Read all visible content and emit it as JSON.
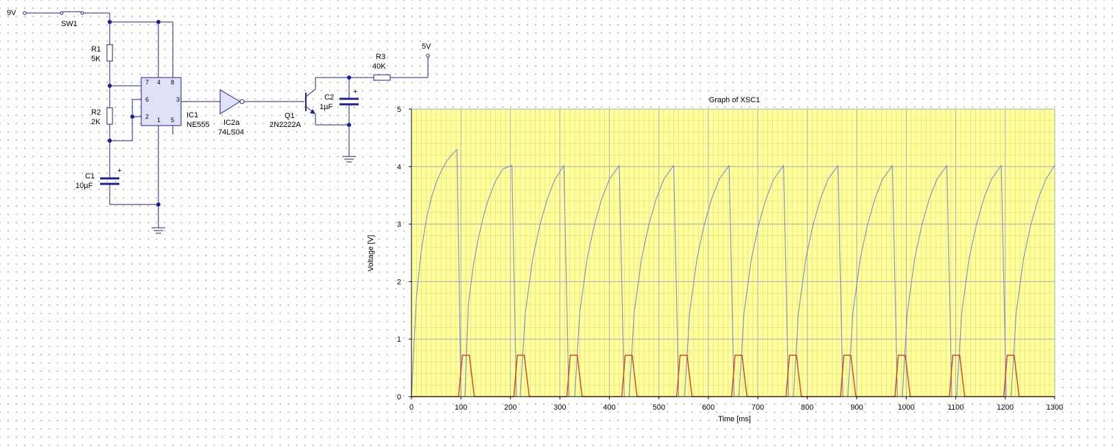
{
  "schematic": {
    "supply_9v": "9V",
    "supply_5v": "5V",
    "sw1": "SW1",
    "r1": {
      "ref": "R1",
      "value": "5K"
    },
    "r2": {
      "ref": "R2",
      "value": "2K"
    },
    "c1": {
      "ref": "C1",
      "value": "10µF",
      "polarity": "+"
    },
    "ic1": {
      "ref": "IC1",
      "value": "NE555",
      "pins": [
        "7",
        "4",
        "8",
        "6",
        "3",
        "2",
        "1",
        "5"
      ]
    },
    "ic2": {
      "ref": "IC2a",
      "value": "74LS04"
    },
    "q1": {
      "ref": "Q1",
      "value": "2N2222A"
    },
    "c2": {
      "ref": "C2",
      "value": "1µF",
      "polarity": "+"
    },
    "r3": {
      "ref": "R3",
      "value": "40K"
    }
  },
  "chart_data": {
    "type": "line",
    "title": "Graph of XSC1",
    "xlabel": "Time [ms]",
    "ylabel": "Voltage [V]",
    "xlim": [
      0,
      1300
    ],
    "ylim": [
      0,
      5
    ],
    "x_ticks": [
      "0",
      "100",
      "200",
      "300",
      "400",
      "500",
      "600",
      "700",
      "800",
      "900",
      "1000",
      "1100",
      "1200",
      "1300"
    ],
    "y_ticks": [
      "0",
      "1",
      "2",
      "3",
      "4",
      "5"
    ],
    "grid": true,
    "background_color": "#ffff9e",
    "series": [
      {
        "color": "#7b86d6",
        "points": [
          [
            0,
            0
          ],
          [
            10,
            1.72
          ],
          [
            20,
            2.55
          ],
          [
            30,
            3.08
          ],
          [
            40,
            3.45
          ],
          [
            50,
            3.72
          ],
          [
            60,
            3.92
          ],
          [
            70,
            4.08
          ],
          [
            80,
            4.19
          ],
          [
            92,
            4.3
          ],
          [
            100,
            0
          ],
          [
            108,
            0
          ],
          [
            115,
            1.6
          ],
          [
            125,
            2.28
          ],
          [
            135,
            2.75
          ],
          [
            145,
            3.12
          ],
          [
            155,
            3.42
          ],
          [
            170,
            3.75
          ],
          [
            185,
            3.96
          ],
          [
            203,
            4.02
          ],
          [
            212,
            0
          ],
          [
            220,
            0
          ],
          [
            230,
            1.45
          ],
          [
            245,
            2.4
          ],
          [
            260,
            3.0
          ],
          [
            275,
            3.45
          ],
          [
            290,
            3.78
          ],
          [
            308,
            4.02
          ],
          [
            318,
            0
          ],
          [
            330,
            0
          ],
          [
            340,
            1.45
          ],
          [
            355,
            2.4
          ],
          [
            370,
            3.0
          ],
          [
            385,
            3.45
          ],
          [
            400,
            3.78
          ],
          [
            420,
            4.02
          ],
          [
            430,
            0
          ],
          [
            440,
            0
          ],
          [
            450,
            1.45
          ],
          [
            465,
            2.4
          ],
          [
            480,
            3.0
          ],
          [
            495,
            3.45
          ],
          [
            510,
            3.78
          ],
          [
            530,
            4.02
          ],
          [
            540,
            0
          ],
          [
            552,
            0
          ],
          [
            562,
            1.45
          ],
          [
            577,
            2.4
          ],
          [
            592,
            3.0
          ],
          [
            607,
            3.45
          ],
          [
            622,
            3.78
          ],
          [
            642,
            4.02
          ],
          [
            652,
            0
          ],
          [
            662,
            0
          ],
          [
            672,
            1.45
          ],
          [
            687,
            2.4
          ],
          [
            702,
            3.0
          ],
          [
            717,
            3.45
          ],
          [
            732,
            3.78
          ],
          [
            752,
            4.02
          ],
          [
            762,
            0
          ],
          [
            772,
            0
          ],
          [
            782,
            1.45
          ],
          [
            797,
            2.4
          ],
          [
            812,
            3.0
          ],
          [
            827,
            3.45
          ],
          [
            842,
            3.78
          ],
          [
            862,
            4.02
          ],
          [
            872,
            0
          ],
          [
            882,
            0
          ],
          [
            892,
            1.45
          ],
          [
            907,
            2.4
          ],
          [
            922,
            3.0
          ],
          [
            937,
            3.45
          ],
          [
            952,
            3.78
          ],
          [
            972,
            4.02
          ],
          [
            982,
            0
          ],
          [
            992,
            0
          ],
          [
            1002,
            1.45
          ],
          [
            1017,
            2.4
          ],
          [
            1032,
            3.0
          ],
          [
            1047,
            3.45
          ],
          [
            1062,
            3.78
          ],
          [
            1082,
            4.02
          ],
          [
            1092,
            0
          ],
          [
            1102,
            0
          ],
          [
            1112,
            1.45
          ],
          [
            1127,
            2.4
          ],
          [
            1142,
            3.0
          ],
          [
            1157,
            3.45
          ],
          [
            1172,
            3.78
          ],
          [
            1192,
            4.02
          ],
          [
            1202,
            0
          ],
          [
            1212,
            0
          ],
          [
            1222,
            1.45
          ],
          [
            1237,
            2.4
          ],
          [
            1252,
            3.0
          ],
          [
            1267,
            3.45
          ],
          [
            1282,
            3.78
          ],
          [
            1300,
            4.02
          ]
        ]
      },
      {
        "color": "#e0362b",
        "points": [
          [
            0,
            0
          ],
          [
            95,
            0
          ],
          [
            103,
            0.72
          ],
          [
            117,
            0.72
          ],
          [
            127,
            0
          ],
          [
            207,
            0
          ],
          [
            214,
            0.72
          ],
          [
            228,
            0.72
          ],
          [
            238,
            0
          ],
          [
            314,
            0
          ],
          [
            321,
            0.72
          ],
          [
            335,
            0.72
          ],
          [
            345,
            0
          ],
          [
            425,
            0
          ],
          [
            432,
            0.72
          ],
          [
            446,
            0.72
          ],
          [
            456,
            0
          ],
          [
            536,
            0
          ],
          [
            543,
            0.72
          ],
          [
            557,
            0.72
          ],
          [
            567,
            0
          ],
          [
            647,
            0
          ],
          [
            654,
            0.72
          ],
          [
            668,
            0.72
          ],
          [
            678,
            0
          ],
          [
            757,
            0
          ],
          [
            764,
            0.72
          ],
          [
            778,
            0.72
          ],
          [
            788,
            0
          ],
          [
            867,
            0
          ],
          [
            874,
            0.72
          ],
          [
            888,
            0.72
          ],
          [
            898,
            0
          ],
          [
            977,
            0
          ],
          [
            984,
            0.72
          ],
          [
            998,
            0.72
          ],
          [
            1008,
            0
          ],
          [
            1087,
            0
          ],
          [
            1094,
            0.72
          ],
          [
            1108,
            0.72
          ],
          [
            1118,
            0
          ],
          [
            1197,
            0
          ],
          [
            1204,
            0.72
          ],
          [
            1218,
            0.72
          ],
          [
            1228,
            0
          ],
          [
            1300,
            0
          ]
        ]
      },
      {
        "color": "#1f3a7a",
        "points": [
          [
            0,
            0
          ],
          [
            1300,
            0
          ]
        ]
      }
    ]
  }
}
